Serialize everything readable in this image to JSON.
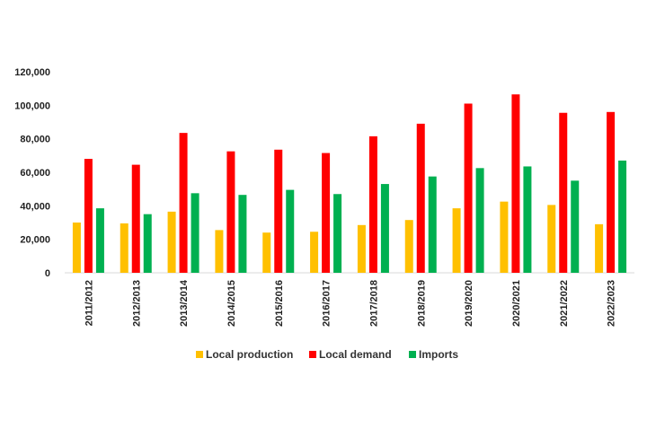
{
  "chart_data": {
    "type": "bar",
    "title": "",
    "xlabel": "",
    "ylabel": "",
    "ylim": [
      0,
      120000
    ],
    "yticks": [
      0,
      20000,
      40000,
      60000,
      80000,
      100000,
      120000
    ],
    "ytick_labels": [
      "0",
      "20,000",
      "40,000",
      "60,000",
      "80,000",
      "100,000",
      "120,000"
    ],
    "grid": false,
    "legend_position": "bottom",
    "categories": [
      "2011/2012",
      "2012/2013",
      "2013/2014",
      "2014/2015",
      "2015/2016",
      "2016/2017",
      "2017/2018",
      "2018/2019",
      "2019/2020",
      "2020/2021",
      "2021/2022",
      "2022/2023"
    ],
    "series": [
      {
        "name": "Local production",
        "color": "#FFC000",
        "values": [
          30000,
          29500,
          36500,
          25500,
          24000,
          24500,
          28500,
          31500,
          38500,
          42500,
          40500,
          29000
        ]
      },
      {
        "name": "Local demand",
        "color": "#FF0000",
        "values": [
          68000,
          64500,
          83500,
          72500,
          73500,
          71500,
          81500,
          89000,
          101000,
          106500,
          95500,
          96000
        ]
      },
      {
        "name": "Imports",
        "color": "#00B050",
        "values": [
          38500,
          35000,
          47500,
          46500,
          49500,
          47000,
          53000,
          57500,
          62500,
          63500,
          55000,
          67000
        ]
      }
    ]
  }
}
